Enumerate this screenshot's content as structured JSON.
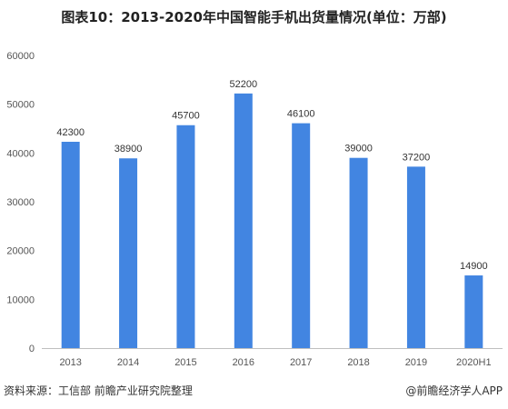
{
  "title": "图表10：2013-2020年中国智能手机出货量情况(单位：万部)",
  "footer": {
    "source": "资料来源：工信部 前瞻产业研究院整理",
    "credit": "@前瞻经济学人APP"
  },
  "colors": {
    "bar": "#4285E1",
    "axis": "#BFBFBF"
  },
  "chart_data": {
    "type": "bar",
    "categories": [
      "2013",
      "2014",
      "2015",
      "2016",
      "2017",
      "2018",
      "2019",
      "2020H1"
    ],
    "values": [
      42300,
      38900,
      45700,
      52200,
      46100,
      39000,
      37200,
      14900
    ],
    "data_labels": [
      "42300",
      "38900",
      "45700",
      "52200",
      "46100",
      "39000",
      "37200",
      "14900"
    ],
    "yticks": [
      "0",
      "10000",
      "20000",
      "30000",
      "40000",
      "50000",
      "60000"
    ],
    "ylim": [
      0,
      60000
    ],
    "grid": false,
    "legend": "none"
  }
}
